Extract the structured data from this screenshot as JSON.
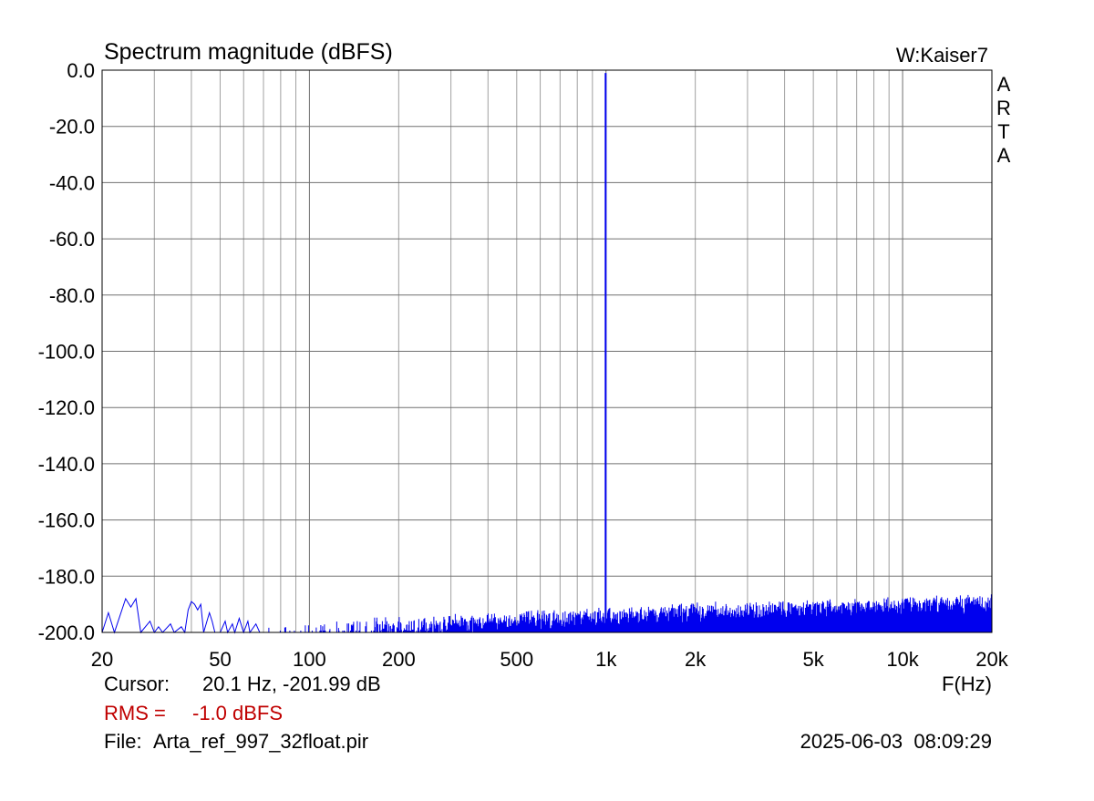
{
  "header": {
    "title": "Spectrum magnitude (dBFS)",
    "window": "W:Kaiser7",
    "brand": "ARTA"
  },
  "footer": {
    "cursor_label": "Cursor:",
    "cursor_value": "20.1 Hz, -201.99 dB",
    "x_unit": "F(Hz)",
    "rms_label": "RMS =",
    "rms_value": "-1.0 dBFS",
    "file_label": "File:",
    "file_value": "Arta_ref_997_32float.pir",
    "timestamp": "2025-06-03  08:09:29"
  },
  "colors": {
    "trace": "#0000ee",
    "grid": "#a0a0a0",
    "grid_major": "#707070",
    "rms": "#c00000"
  },
  "chart_data": {
    "type": "line",
    "title": "Spectrum magnitude (dBFS)",
    "xlabel": "F(Hz)",
    "ylabel": "",
    "x_scale": "log",
    "xlim": [
      20,
      20000
    ],
    "ylim": [
      -200,
      0
    ],
    "grid": true,
    "x_ticks": [
      {
        "value": 20,
        "label": "20"
      },
      {
        "value": 50,
        "label": "50"
      },
      {
        "value": 100,
        "label": "100"
      },
      {
        "value": 200,
        "label": "200"
      },
      {
        "value": 500,
        "label": "500"
      },
      {
        "value": 1000,
        "label": "1k"
      },
      {
        "value": 2000,
        "label": "2k"
      },
      {
        "value": 5000,
        "label": "5k"
      },
      {
        "value": 10000,
        "label": "10k"
      },
      {
        "value": 20000,
        "label": "20k"
      }
    ],
    "y_ticks": [
      {
        "value": 0,
        "label": "0.0"
      },
      {
        "value": -20,
        "label": "-20.0"
      },
      {
        "value": -40,
        "label": "-40.0"
      },
      {
        "value": -60,
        "label": "-60.0"
      },
      {
        "value": -80,
        "label": "-80.0"
      },
      {
        "value": -100,
        "label": "-100.0"
      },
      {
        "value": -120,
        "label": "-120.0"
      },
      {
        "value": -140,
        "label": "-140.0"
      },
      {
        "value": -160,
        "label": "-160.0"
      },
      {
        "value": -180,
        "label": "-180.0"
      },
      {
        "value": -200,
        "label": "-200.0"
      }
    ],
    "series": [
      {
        "peak": {
          "x": 997,
          "y": -1
        },
        "noise_floor_low": [
          [
            20,
            -200
          ],
          [
            21,
            -193
          ],
          [
            22,
            -200
          ],
          [
            24,
            -188
          ],
          [
            25,
            -191
          ],
          [
            26,
            -188
          ],
          [
            27,
            -200
          ],
          [
            29,
            -196
          ],
          [
            30,
            -200
          ],
          [
            31,
            -198
          ],
          [
            32,
            -200
          ],
          [
            34,
            -197
          ],
          [
            35,
            -200
          ],
          [
            37,
            -198
          ],
          [
            38,
            -200
          ],
          [
            39,
            -192
          ],
          [
            40,
            -189
          ],
          [
            41,
            -190
          ],
          [
            42,
            -192
          ],
          [
            43,
            -190
          ],
          [
            44,
            -200
          ],
          [
            46,
            -193
          ],
          [
            47,
            -196
          ],
          [
            48,
            -200
          ],
          [
            50,
            -200
          ],
          [
            52,
            -196
          ],
          [
            53,
            -200
          ],
          [
            55,
            -197
          ],
          [
            56,
            -200
          ],
          [
            58,
            -195
          ],
          [
            60,
            -200
          ],
          [
            62,
            -196
          ],
          [
            63,
            -200
          ],
          [
            66,
            -197
          ],
          [
            68,
            -200
          ]
        ],
        "noise_floor_high": [
          [
            100,
            -196
          ],
          [
            200,
            -195
          ],
          [
            500,
            -193
          ],
          [
            1000,
            -192
          ],
          [
            2000,
            -190
          ],
          [
            5000,
            -189
          ],
          [
            10000,
            -188
          ],
          [
            20000,
            -187
          ]
        ]
      }
    ]
  }
}
